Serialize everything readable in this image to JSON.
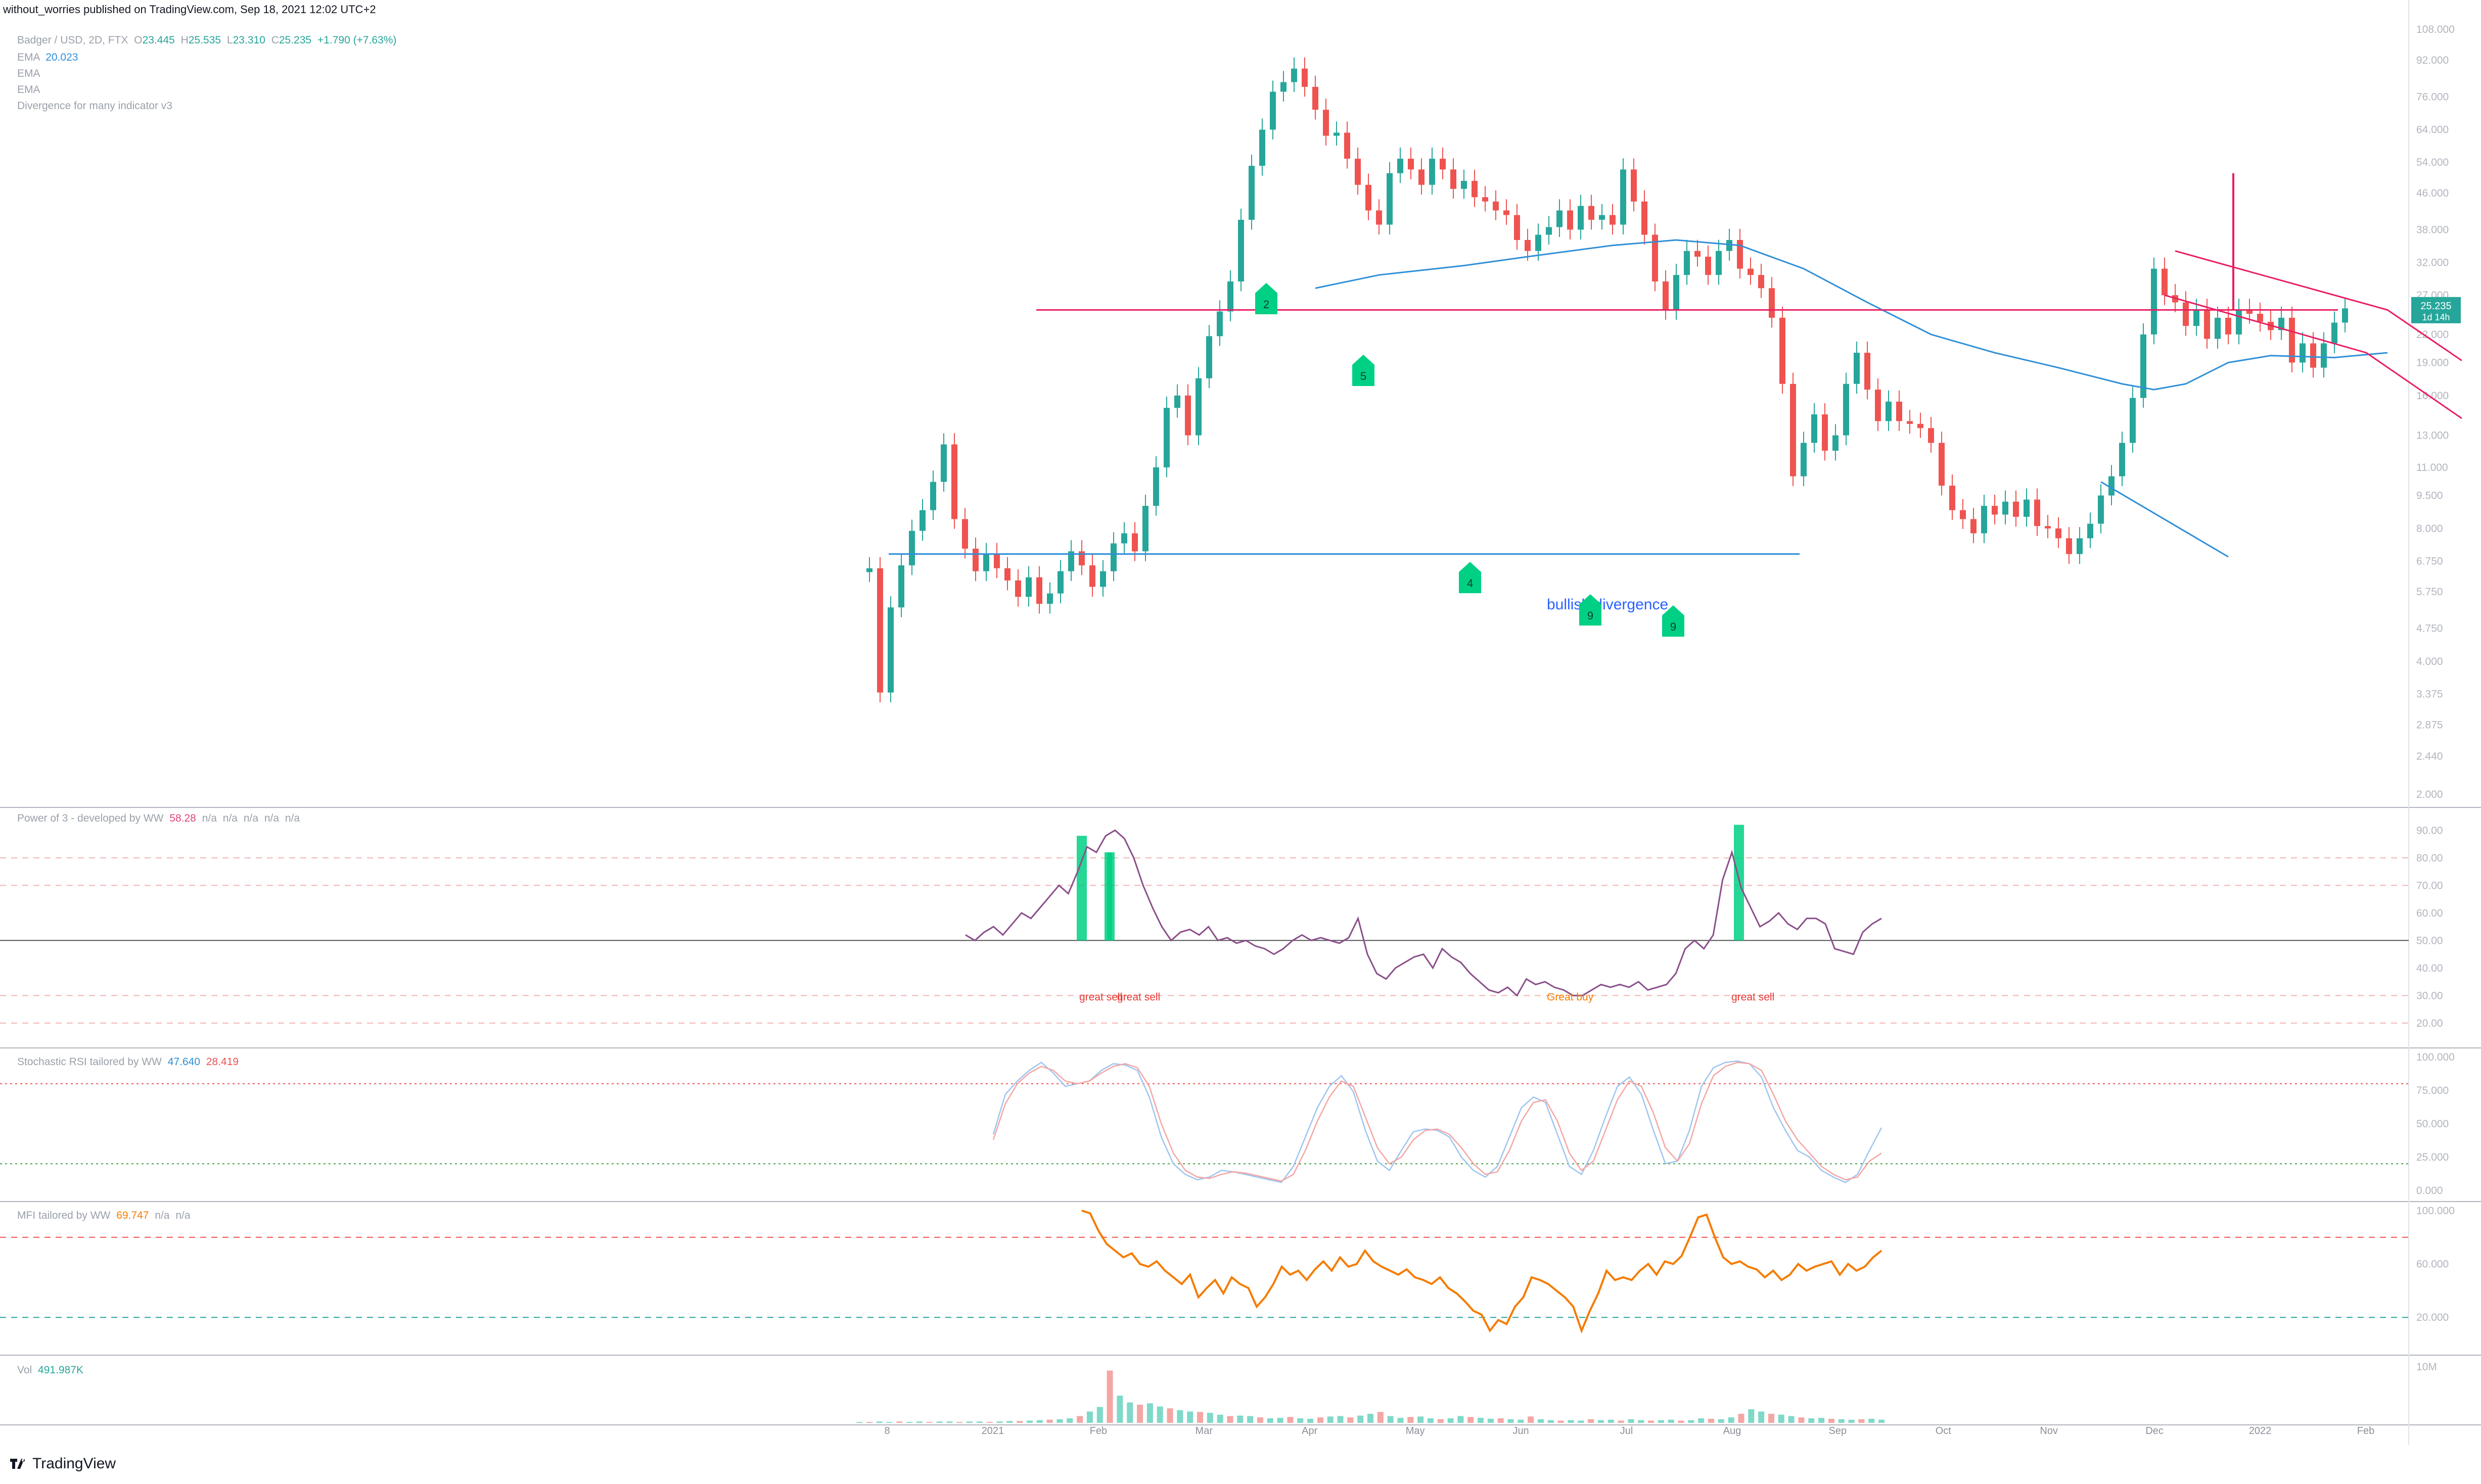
{
  "caption": "without_worries published on TradingView.com, Sep 18, 2021 12:02 UTC+2",
  "footer_brand": "TradingView",
  "legend": {
    "symbol": "Badger / USD, 2D, FTX",
    "open_label": "O",
    "open": "23.445",
    "high_label": "H",
    "high": "25.535",
    "low_label": "L",
    "low": "23.310",
    "close_label": "C",
    "close": "25.235",
    "change": "+1.790 (+7.63%)",
    "ema1_label": "EMA",
    "ema1_value": "20.023",
    "ema2_label": "EMA",
    "ema3_label": "EMA",
    "div_label": "Divergence for many indicator v3"
  },
  "price_tag": {
    "value": "25.235",
    "countdown": "1d 14h"
  },
  "colors": {
    "up": "#26a69a",
    "up_light": "#7fd9c9",
    "down": "#ef5350",
    "down_light": "#f4a6a4",
    "ema": "#2f8fd8",
    "pink": "#e91e63",
    "blue_line": "#2962ff",
    "signal": "#00d084",
    "grid": "#f0f3fa",
    "axis_text": "#b2b5be"
  },
  "chart_data": [
    {
      "type": "candlestick",
      "title": "Badger / USD, 2D, FTX",
      "y_scale": "log",
      "ylim": [
        2.0,
        108.0
      ],
      "y_ticks": [
        "108.000",
        "92.000",
        "76.000",
        "64.000",
        "54.000",
        "46.000",
        "38.000",
        "32.000",
        "27.000",
        "22.000",
        "19.000",
        "16.000",
        "13.000",
        "11.000",
        "9.500",
        "8.000",
        "6.750",
        "5.750",
        "4.750",
        "4.000",
        "3.375",
        "2.875",
        "2.440",
        "2.000"
      ],
      "x_ticks": [
        "8",
        "2021",
        "Feb",
        "Mar",
        "Apr",
        "May",
        "Jun",
        "Jul",
        "Aug",
        "Sep",
        "Oct",
        "Nov",
        "Dec",
        "2022",
        "Feb"
      ],
      "closes": [
        6.5,
        3.4,
        5.3,
        6.6,
        7.9,
        8.8,
        10.2,
        12.4,
        8.4,
        7.2,
        6.4,
        7.0,
        6.5,
        6.1,
        5.6,
        6.2,
        5.4,
        5.7,
        6.4,
        7.1,
        6.6,
        5.9,
        6.4,
        7.4,
        7.8,
        7.1,
        9.0,
        11.0,
        15.0,
        16.0,
        13.0,
        17.5,
        21.8,
        24.8,
        29.0,
        40.0,
        53.0,
        64.0,
        78.0,
        82.0,
        88.0,
        80.0,
        71.0,
        62.0,
        63.0,
        55.0,
        48.0,
        42.0,
        39.0,
        51.0,
        55.0,
        52.0,
        48.0,
        55.0,
        52.0,
        47.0,
        49.0,
        45.0,
        44.0,
        42.0,
        41.0,
        36.0,
        34.0,
        37.0,
        38.5,
        42.0,
        38.0,
        43.0,
        40.0,
        41.0,
        39.0,
        52.0,
        44.0,
        37.0,
        29.0,
        25.0,
        30.0,
        34.0,
        33.0,
        30.0,
        34.0,
        36.0,
        31.0,
        30.0,
        28.0,
        24.0,
        17.0,
        10.5,
        12.5,
        14.5,
        12.0,
        13.0,
        17.0,
        20.0,
        16.5,
        14.0,
        15.5,
        14.0,
        13.8,
        13.5,
        12.5,
        10.0,
        8.8,
        8.4,
        7.8,
        9.0,
        8.6,
        9.2,
        8.5,
        9.3,
        8.1,
        8.0,
        7.6,
        7.0,
        7.6,
        8.2,
        9.5,
        10.5,
        12.5,
        15.8,
        22.0,
        31.0,
        27.0,
        26.0,
        23.0,
        25.0,
        21.5,
        24.0,
        22.0,
        25.0,
        24.5,
        23.5,
        22.5,
        24.0,
        19.0,
        21.0,
        18.5,
        21.0,
        23.4,
        25.2
      ],
      "ema_points": [
        [
          42,
          28.0
        ],
        [
          48,
          30.0
        ],
        [
          56,
          31.5
        ],
        [
          62,
          33.0
        ],
        [
          70,
          35.0
        ],
        [
          76,
          36.0
        ],
        [
          82,
          35.0
        ],
        [
          88,
          31.0
        ],
        [
          94,
          26.0
        ],
        [
          100,
          22.0
        ],
        [
          106,
          20.0
        ],
        [
          112,
          18.5
        ],
        [
          118,
          17.0
        ],
        [
          121,
          16.5
        ],
        [
          124,
          17.0
        ],
        [
          128,
          19.0
        ],
        [
          132,
          19.7
        ],
        [
          138,
          19.5
        ],
        [
          143,
          20.0
        ]
      ],
      "resistance_line": {
        "price": 25.0
      },
      "support_line": {
        "price": 7.0
      },
      "channel_upper": [
        [
          123,
          34.0
        ],
        [
          143,
          25.0
        ],
        [
          150,
          19.2
        ]
      ],
      "channel_lower": [
        [
          122,
          27.0
        ],
        [
          141,
          20.0
        ],
        [
          150,
          14.2
        ]
      ],
      "divergence_line": [
        [
          116,
          10.2
        ],
        [
          128,
          6.9
        ]
      ],
      "vertical_target": {
        "from_price": 25.0,
        "to_price": 51.0
      },
      "annotations": [
        "bullish divergence"
      ],
      "signals": [
        {
          "label": "2"
        },
        {
          "label": "5"
        },
        {
          "label": "4"
        },
        {
          "label": "9"
        },
        {
          "label": "9"
        }
      ]
    },
    {
      "type": "line",
      "title": "Power of 3 - developed by WW",
      "value": "58.28",
      "na_values": [
        "n/a",
        "n/a",
        "n/a",
        "n/a",
        "n/a"
      ],
      "ylim": [
        15,
        95
      ],
      "y_ticks": [
        "90.00",
        "80.00",
        "70.00",
        "60.00",
        "50.00",
        "40.00",
        "30.00",
        "20.00"
      ],
      "series": [
        52,
        50,
        53,
        55,
        52,
        56,
        60,
        58,
        62,
        66,
        70,
        67,
        75,
        84,
        82,
        88,
        90,
        87,
        80,
        70,
        62,
        55,
        50,
        53,
        54,
        52,
        55,
        50,
        51,
        49,
        50,
        48,
        47,
        45,
        47,
        50,
        52,
        50,
        51,
        50,
        49,
        51,
        58,
        45,
        38,
        36,
        40,
        42,
        44,
        45,
        40,
        47,
        44,
        42,
        38,
        35,
        32,
        31,
        33,
        30,
        36,
        34,
        35,
        33,
        32,
        30,
        30,
        32,
        34,
        33,
        34,
        33,
        35,
        32,
        33,
        34,
        38,
        47,
        50,
        47,
        52,
        72,
        82,
        69,
        62,
        55,
        57,
        60,
        56,
        54,
        58,
        58,
        56,
        47,
        46,
        45,
        53,
        56,
        58
      ],
      "annotations": [
        "great sell",
        "great sell",
        "Great buy",
        "great sell"
      ]
    },
    {
      "type": "line",
      "title": "Stochastic RSI tailored by WW",
      "values": [
        "47.640",
        "28.419"
      ],
      "ylim": [
        0,
        100
      ],
      "y_ticks": [
        "100.000",
        "75.000",
        "50.000",
        "25.000",
        "0.000"
      ],
      "k": [
        42,
        72,
        82,
        90,
        96,
        88,
        78,
        80,
        82,
        90,
        95,
        94,
        90,
        70,
        40,
        20,
        12,
        8,
        10,
        15,
        14,
        12,
        10,
        8,
        6,
        18,
        40,
        62,
        78,
        86,
        74,
        45,
        22,
        15,
        30,
        44,
        46,
        45,
        40,
        25,
        15,
        10,
        18,
        40,
        62,
        70,
        66,
        42,
        18,
        12,
        30,
        55,
        78,
        85,
        72,
        45,
        20,
        22,
        45,
        78,
        92,
        96,
        97,
        95,
        85,
        62,
        45,
        30,
        25,
        15,
        10,
        6,
        12,
        30,
        47
      ],
      "d": [
        38,
        65,
        80,
        88,
        93,
        90,
        82,
        80,
        82,
        88,
        93,
        95,
        92,
        78,
        50,
        28,
        15,
        10,
        9,
        12,
        14,
        13,
        11,
        9,
        7,
        12,
        30,
        52,
        70,
        82,
        78,
        55,
        32,
        20,
        25,
        38,
        45,
        46,
        42,
        32,
        20,
        12,
        14,
        30,
        52,
        66,
        68,
        52,
        28,
        15,
        22,
        45,
        68,
        82,
        78,
        58,
        32,
        22,
        35,
        65,
        86,
        93,
        96,
        95,
        90,
        72,
        52,
        38,
        28,
        18,
        12,
        8,
        10,
        22,
        28
      ]
    },
    {
      "type": "line",
      "title": "MFI tailored by WW",
      "value": "69.747",
      "na_values": [
        "n/a",
        "n/a"
      ],
      "ylim": [
        0,
        100
      ],
      "y_ticks": [
        "100.000",
        "60.000",
        "20.000"
      ],
      "series": [
        100,
        98,
        85,
        75,
        70,
        65,
        68,
        60,
        58,
        62,
        55,
        50,
        45,
        52,
        35,
        42,
        48,
        38,
        50,
        45,
        42,
        28,
        35,
        45,
        58,
        52,
        55,
        48,
        56,
        62,
        55,
        65,
        58,
        60,
        70,
        62,
        58,
        55,
        52,
        56,
        50,
        48,
        45,
        50,
        42,
        38,
        32,
        25,
        22,
        10,
        18,
        15,
        28,
        35,
        50,
        48,
        45,
        40,
        35,
        28,
        10,
        25,
        38,
        55,
        48,
        50,
        48,
        55,
        60,
        52,
        62,
        60,
        66,
        80,
        95,
        97,
        80,
        65,
        60,
        62,
        58,
        56,
        50,
        55,
        48,
        52,
        60,
        55,
        58,
        60,
        62,
        52,
        60,
        55,
        58,
        65,
        70
      ],
      "signal_ranges": [
        [
          50,
          0
        ],
        [
          62,
          0
        ]
      ]
    },
    {
      "type": "bar",
      "title": "Vol",
      "value": "491.987K",
      "y_ticks": [
        "10M"
      ],
      "ylim": [
        0,
        12
      ]
    }
  ]
}
